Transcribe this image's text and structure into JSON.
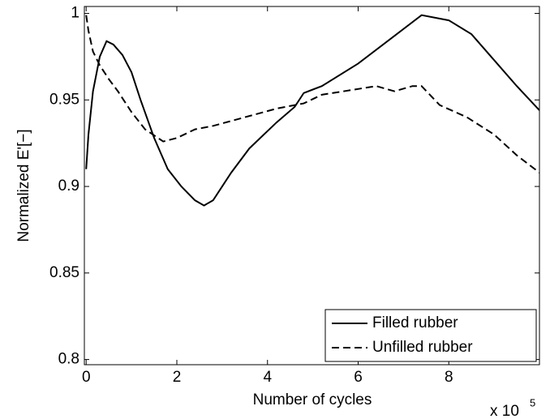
{
  "chart_data": {
    "type": "line",
    "x_label": "Number of cycles",
    "y_label": "Normalized E'[−]",
    "x_multiplier": "x 10",
    "x_multiplier_exponent": "5",
    "xlim": [
      -0.04,
      10
    ],
    "xticks": [
      0,
      2,
      4,
      6,
      8
    ],
    "ylim": [
      0.797,
      1.004
    ],
    "yticks": [
      0.8,
      0.85,
      0.9,
      0.95,
      1
    ],
    "grid": false,
    "legend": "lower right",
    "series": [
      {
        "name": "Filled rubber",
        "color": "#000000",
        "dash": "solid",
        "x": [
          0,
          0.05,
          0.15,
          0.3,
          0.45,
          0.6,
          0.8,
          1,
          1.2,
          1.5,
          1.8,
          2.1,
          2.4,
          2.6,
          2.8,
          3.0,
          3.2,
          3.6,
          4.2,
          4.6,
          4.8,
          5.2,
          6,
          6.8,
          7.4,
          8,
          8.5,
          9,
          9.5,
          10
        ],
        "values": [
          0.91,
          0.93,
          0.955,
          0.975,
          0.984,
          0.982,
          0.976,
          0.966,
          0.95,
          0.928,
          0.91,
          0.9,
          0.892,
          0.889,
          0.892,
          0.9,
          0.908,
          0.922,
          0.937,
          0.946,
          0.954,
          0.958,
          0.971,
          0.987,
          0.999,
          0.996,
          0.988,
          0.973,
          0.958,
          0.944
        ]
      },
      {
        "name": "Unfilled rubber",
        "color": "#000000",
        "dash": "dashed",
        "x": [
          0,
          0.05,
          0.15,
          0.3,
          0.5,
          0.7,
          1,
          1.3,
          1.7,
          2,
          2.4,
          2.8,
          3.5,
          4.2,
          4.8,
          5.2,
          6.4,
          6.8,
          7.2,
          7.4,
          7.8,
          8.4,
          9,
          9.5,
          10
        ],
        "values": [
          0.999,
          0.99,
          0.978,
          0.97,
          0.962,
          0.955,
          0.943,
          0.933,
          0.926,
          0.928,
          0.933,
          0.935,
          0.94,
          0.945,
          0.948,
          0.953,
          0.958,
          0.955,
          0.958,
          0.958,
          0.947,
          0.94,
          0.93,
          0.918,
          0.908
        ]
      }
    ]
  }
}
